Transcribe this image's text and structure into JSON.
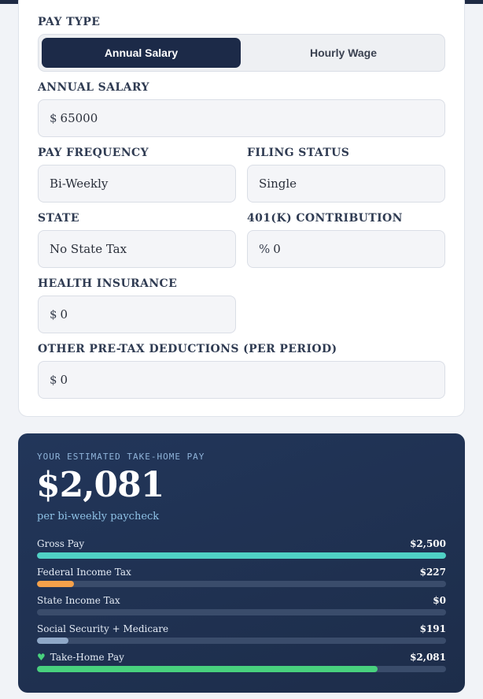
{
  "form": {
    "pay_type": {
      "label": "PAY TYPE",
      "options": [
        "Annual Salary",
        "Hourly Wage"
      ],
      "selected": "Annual Salary"
    },
    "annual_salary": {
      "label": "ANNUAL SALARY",
      "prefix": "$",
      "value": "65000"
    },
    "pay_frequency": {
      "label": "PAY FREQUENCY",
      "value": "Bi-Weekly"
    },
    "filing_status": {
      "label": "FILING STATUS",
      "value": "Single"
    },
    "state": {
      "label": "STATE",
      "value": "No State Tax"
    },
    "contribution_401k": {
      "label": "401(K) CONTRIBUTION",
      "prefix": "%",
      "value": "0"
    },
    "health_insurance": {
      "label": "HEALTH INSURANCE",
      "prefix": "$",
      "value": "0"
    },
    "other_pretax": {
      "label": "OTHER PRE-TAX DEDUCTIONS (PER PERIOD)",
      "prefix": "$",
      "value": "0"
    }
  },
  "result": {
    "eyebrow": "YOUR ESTIMATED TAKE-HOME PAY",
    "amount": "$2,081",
    "subtitle": "per bi-weekly paycheck",
    "breakdown": [
      {
        "label": "Gross Pay",
        "value": "$2,500",
        "fraction": 1.0,
        "color": "#4fd1c5"
      },
      {
        "label": "Federal Income Tax",
        "value": "$227",
        "fraction": 0.091,
        "color": "#f6a14a"
      },
      {
        "label": "State Income Tax",
        "value": "$0",
        "fraction": 0.0,
        "color": "#f6a14a"
      },
      {
        "label": "Social Security + Medicare",
        "value": "$191",
        "fraction": 0.076,
        "color": "#8fa8c8"
      },
      {
        "label": "Take-Home Pay",
        "value": "$2,081",
        "fraction": 0.832,
        "color": "#48d17e",
        "icon": "green-heart-icon"
      }
    ]
  }
}
